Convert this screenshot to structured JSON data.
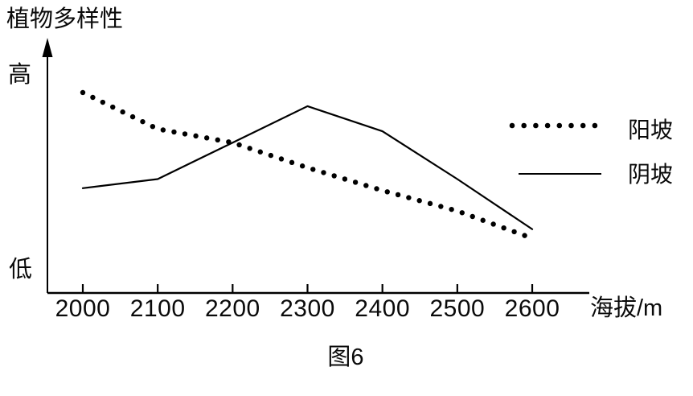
{
  "figure": {
    "caption": "图6",
    "background": "#ffffff",
    "ink": "#000000"
  },
  "y_axis": {
    "title": "植物多样性",
    "high_label": "高",
    "low_label": "低"
  },
  "x_axis": {
    "label": "海拔/m",
    "ticks": [
      "2000",
      "2100",
      "2200",
      "2300",
      "2400",
      "2500",
      "2600"
    ]
  },
  "legend": {
    "items": [
      {
        "label": "阳坡",
        "line_style": "dotted"
      },
      {
        "label": "阴坡",
        "line_style": "solid"
      }
    ]
  },
  "chart_data": {
    "type": "line",
    "title": "",
    "x": [
      2000,
      2100,
      2200,
      2300,
      2400,
      2500,
      2600
    ],
    "xlabel": "海拔/m",
    "ylabel": "植物多样性",
    "y_axis_type": "qualitative",
    "y_axis_labels": {
      "top": "高",
      "bottom": "低"
    },
    "ylim": [
      0,
      100
    ],
    "grid": false,
    "legend_position": "right-middle",
    "series": [
      {
        "name": "阳坡",
        "style": "dotted",
        "values": [
          88,
          72,
          66,
          55,
          45,
          36,
          24
        ]
      },
      {
        "name": "阴坡",
        "style": "solid",
        "values": [
          46,
          50,
          66,
          82,
          71,
          50,
          28
        ]
      }
    ]
  }
}
